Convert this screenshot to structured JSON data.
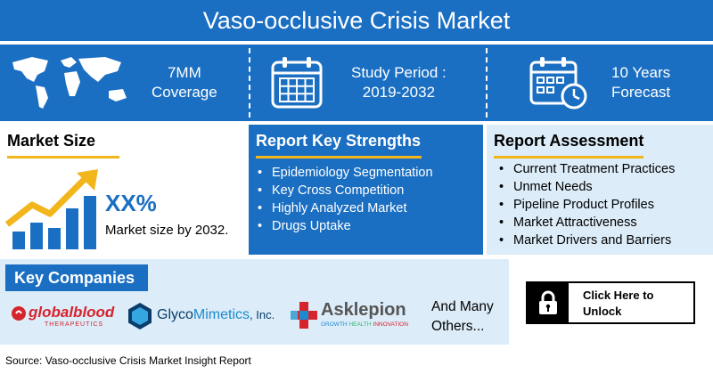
{
  "title": "Vaso-occlusive Crisis Market",
  "stats": [
    {
      "icon": "world-map-icon",
      "line1": "7MM",
      "line2": "Coverage"
    },
    {
      "icon": "calendar-icon",
      "line1": "Study Period :",
      "line2": "2019-2032"
    },
    {
      "icon": "calendar-clock-icon",
      "line1": "10 Years",
      "line2": "Forecast"
    }
  ],
  "market_size": {
    "heading": "Market Size",
    "value": "XX%",
    "caption": "Market size by 2032."
  },
  "key_strengths": {
    "heading": "Report Key Strengths",
    "items": [
      "Epidemiology Segmentation",
      "Key Cross Competition",
      "Highly Analyzed Market",
      "Drugs Uptake"
    ]
  },
  "assessment": {
    "heading": "Report Assessment",
    "items": [
      "Current Treatment Practices",
      "Unmet Needs",
      "Pipeline Product Profiles",
      "Market Attractiveness",
      "Market Drivers and Barriers"
    ]
  },
  "companies": {
    "heading": "Key Companies",
    "logos": [
      {
        "name": "globalblood",
        "sub": "THERAPEUTICS"
      },
      {
        "name_a": "Glyco",
        "name_b": "Mimetics",
        "name_c": ", Inc."
      },
      {
        "name": "Asklepion",
        "sub_a": "GROWTH",
        "sub_b": "HEALTH",
        "sub_c": "INNOVATION"
      }
    ],
    "more_line1": "And Many",
    "more_line2": "Others..."
  },
  "unlock": {
    "line1": "Click Here to",
    "line2": "Unlock"
  },
  "source": "Source: Vaso-occlusive Crisis Market Insight Report",
  "colors": {
    "primary_blue": "#1b6fc2",
    "light_blue": "#dcecf8",
    "accent_yellow": "#f2b51b",
    "logo_red": "#d6242d"
  }
}
